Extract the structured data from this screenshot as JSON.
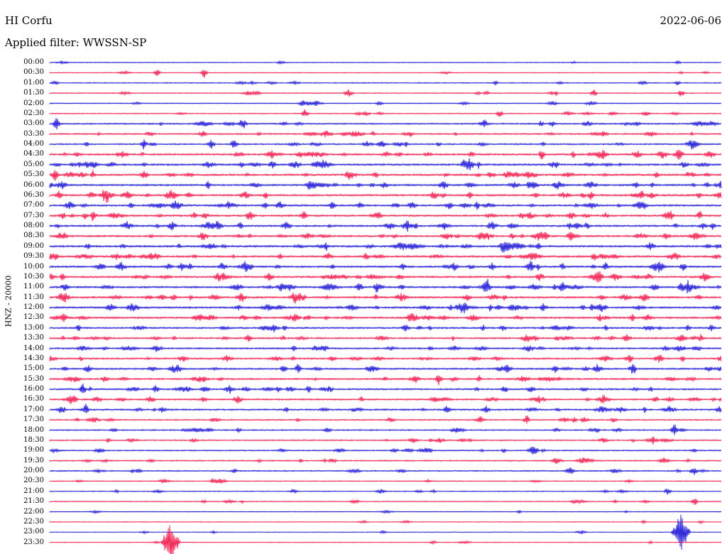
{
  "header": {
    "station": "HI Corfu",
    "date": "2022-06-06",
    "filter_label": "Applied filter: WWSSN-SP"
  },
  "channel_label": "HNZ - 20000",
  "colors": {
    "blue_trace": "#1a14d6",
    "red_trace": "#f2174a",
    "background": "#ffffff",
    "text": "#000000"
  },
  "rows": [
    {
      "time": "00:00",
      "color": "blue"
    },
    {
      "time": "00:30",
      "color": "red"
    },
    {
      "time": "01:00",
      "color": "blue"
    },
    {
      "time": "01:30",
      "color": "red"
    },
    {
      "time": "02:00",
      "color": "blue"
    },
    {
      "time": "02:30",
      "color": "red"
    },
    {
      "time": "03:00",
      "color": "blue"
    },
    {
      "time": "03:30",
      "color": "red"
    },
    {
      "time": "04:00",
      "color": "blue"
    },
    {
      "time": "04:30",
      "color": "red"
    },
    {
      "time": "05:00",
      "color": "blue"
    },
    {
      "time": "05:30",
      "color": "red"
    },
    {
      "time": "06:00",
      "color": "blue"
    },
    {
      "time": "06:30",
      "color": "red"
    },
    {
      "time": "07:00",
      "color": "blue"
    },
    {
      "time": "07:30",
      "color": "red"
    },
    {
      "time": "08:00",
      "color": "blue"
    },
    {
      "time": "08:30",
      "color": "red"
    },
    {
      "time": "09:00",
      "color": "blue"
    },
    {
      "time": "09:30",
      "color": "red"
    },
    {
      "time": "10:00",
      "color": "blue"
    },
    {
      "time": "10:30",
      "color": "red"
    },
    {
      "time": "11:00",
      "color": "blue"
    },
    {
      "time": "11:30",
      "color": "red"
    },
    {
      "time": "12:00",
      "color": "blue"
    },
    {
      "time": "12:30",
      "color": "red"
    },
    {
      "time": "13:00",
      "color": "blue"
    },
    {
      "time": "13:30",
      "color": "red"
    },
    {
      "time": "14:00",
      "color": "blue"
    },
    {
      "time": "14:30",
      "color": "red"
    },
    {
      "time": "15:00",
      "color": "blue"
    },
    {
      "time": "15:30",
      "color": "red"
    },
    {
      "time": "16:00",
      "color": "blue"
    },
    {
      "time": "16:30",
      "color": "red"
    },
    {
      "time": "17:00",
      "color": "blue"
    },
    {
      "time": "17:30",
      "color": "red"
    },
    {
      "time": "18:00",
      "color": "blue"
    },
    {
      "time": "18:30",
      "color": "red"
    },
    {
      "time": "19:00",
      "color": "blue"
    },
    {
      "time": "19:30",
      "color": "red"
    },
    {
      "time": "20:00",
      "color": "blue"
    },
    {
      "time": "20:30",
      "color": "red"
    },
    {
      "time": "21:00",
      "color": "blue"
    },
    {
      "time": "21:30",
      "color": "red"
    },
    {
      "time": "22:00",
      "color": "blue"
    },
    {
      "time": "22:30",
      "color": "red"
    },
    {
      "time": "23:00",
      "color": "blue"
    },
    {
      "time": "23:30",
      "color": "red"
    }
  ]
}
